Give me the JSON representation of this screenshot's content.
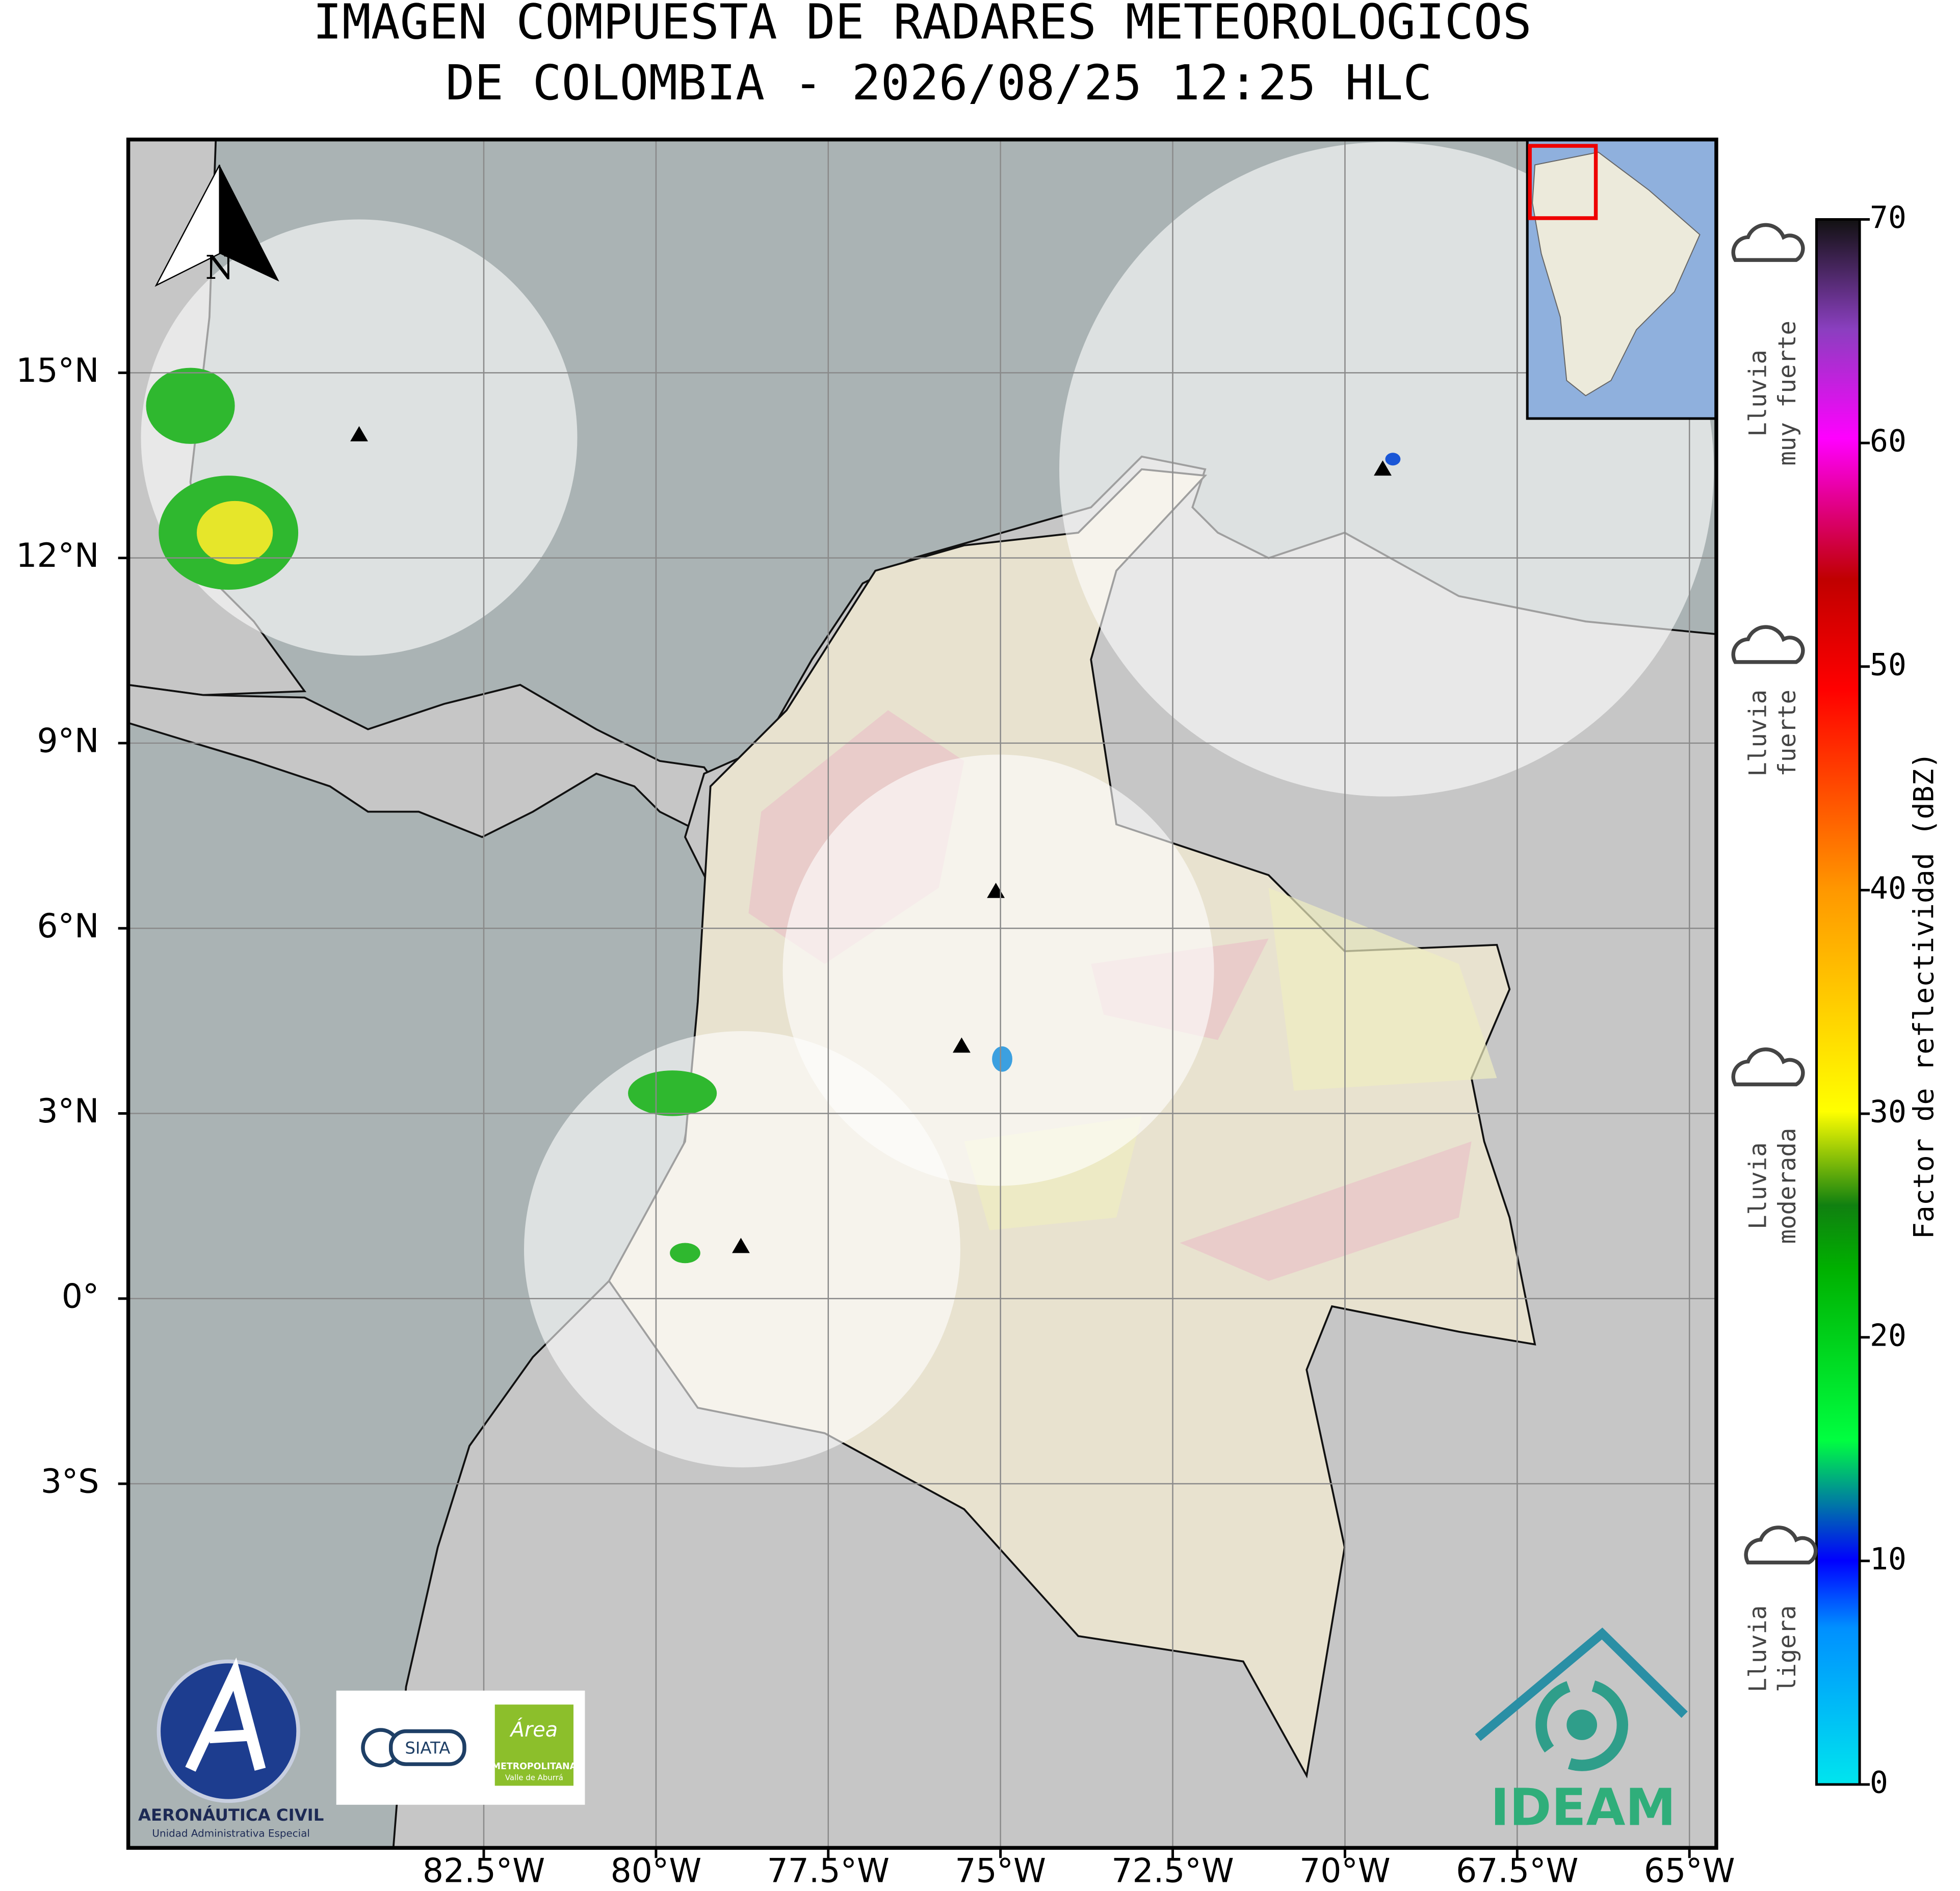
{
  "title": [
    "IMAGEN COMPUESTA DE RADARES METEOROLOGICOS",
    "DE COLOMBIA - 2026/08/25 12:25 HLC"
  ],
  "map": {
    "xlim": [
      -87.66,
      -64.61
    ],
    "ylim": [
      -8.9,
      18.78
    ],
    "xticks": [
      {
        "value": -82.5,
        "label": "82.5°W"
      },
      {
        "value": -80,
        "label": "80°W"
      },
      {
        "value": -77.5,
        "label": "77.5°W"
      },
      {
        "value": -75,
        "label": "75°W"
      },
      {
        "value": -72.5,
        "label": "72.5°W"
      },
      {
        "value": -70,
        "label": "70°W"
      },
      {
        "value": -67.5,
        "label": "67.5°W"
      },
      {
        "value": -65,
        "label": "65°W"
      }
    ],
    "yticks": [
      {
        "value": 15,
        "label": "15°N"
      },
      {
        "value": 12,
        "label": "12°N"
      },
      {
        "value": 9,
        "label": "9°N"
      },
      {
        "value": 6,
        "label": "6°N"
      },
      {
        "value": 3,
        "label": "3°N"
      },
      {
        "value": 0,
        "label": "0°"
      },
      {
        "value": -3,
        "label": "3°S"
      }
    ],
    "north_label": "N"
  },
  "colorbar": {
    "label": "Factor de reflectividad (dBZ)",
    "lim": [
      0,
      70
    ],
    "ticks": [
      0,
      10,
      20,
      30,
      40,
      50,
      60,
      70
    ]
  },
  "intensity_labels": [
    [
      "Lluvia",
      "muy fuerte"
    ],
    [
      "Lluvia",
      "fuerte"
    ],
    [
      "Lluvia",
      "moderada"
    ],
    [
      "Lluvia",
      "ligera"
    ]
  ],
  "logos": {
    "aeronautica": "AERONÁUTICA CIVIL",
    "aeronautica_sub": "Unidad Administrativa Especial",
    "siata": "SIATA",
    "area": "Área",
    "area_sub1": "METROPOLITANA",
    "area_sub2": "Valle de Aburrá",
    "ideam": "IDEAM"
  }
}
